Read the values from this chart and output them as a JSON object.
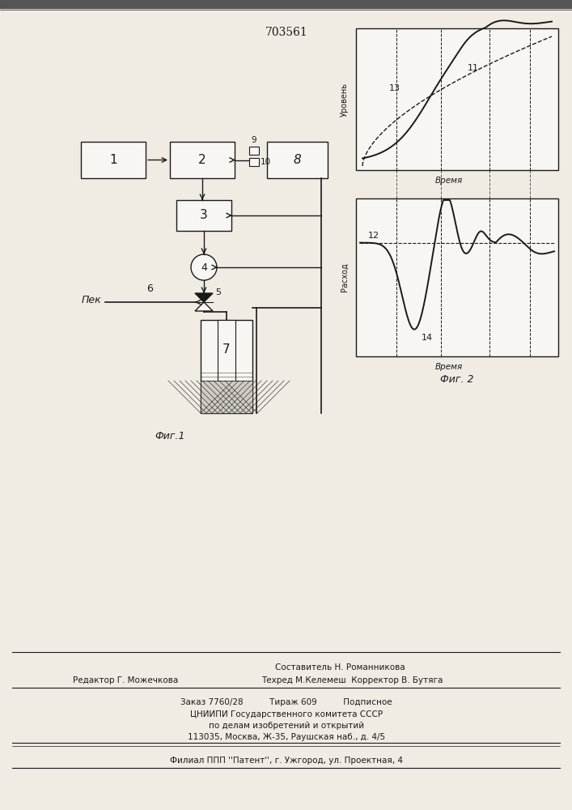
{
  "patent_number": "703561",
  "fig1_label": "Фиг.1",
  "fig2_label": "Фиг. 2",
  "pek_label": "Пек",
  "ylabel_top": "Уровень",
  "ylabel_bot": "Расход",
  "xlabel_top": "Время",
  "xlabel_bot": "Время",
  "curve11_label": "11",
  "curve13_label": "13",
  "curve12_label": "12",
  "curve14_label": "14",
  "box1_label": "1",
  "box2_label": "2",
  "box3_label": "3",
  "box4_label": "4",
  "box6_label": "6",
  "box7_label": "7",
  "box8_label": "8",
  "label9": "9",
  "label10": "10",
  "label5": "5",
  "footer_line1": "Составитель Н. Романникова",
  "footer_line2_left": "Редактор Г. Можечкова",
  "footer_line2_right": "Техред М.Келемеш  Корректор В. Бутяга",
  "footer_line3": "Заказ 7760/28          Тираж 609          Подписное",
  "footer_line4": "ЦНИИПИ Государственного комитета СССР",
  "footer_line5": "по делам изобретений и открытий",
  "footer_line6": "113035, Москва, Ж-35, Раушская наб., д. 4/5",
  "footer_line7": "Филиал ППП ''Патент'', г. Ужгород, ул. Проектная, 4",
  "bg_color": "#f0ece4",
  "line_color": "#1a1a1a",
  "box_color": "#f8f6f2"
}
